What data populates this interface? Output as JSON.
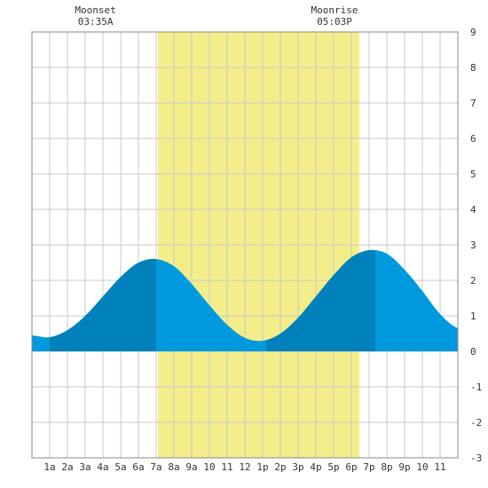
{
  "chart_data": {
    "type": "area",
    "ylim": [
      -3,
      9
    ],
    "xlim": [
      0,
      24
    ],
    "y_ticks": [
      -3,
      -2,
      -1,
      0,
      1,
      2,
      3,
      4,
      5,
      6,
      7,
      8,
      9
    ],
    "x_tick_labels": [
      "1a",
      "2a",
      "3a",
      "4a",
      "5a",
      "6a",
      "7a",
      "8a",
      "9a",
      "10",
      "11",
      "12",
      "1p",
      "2p",
      "3p",
      "4p",
      "5p",
      "6p",
      "7p",
      "8p",
      "9p",
      "10",
      "11"
    ],
    "y_axis_side": "right",
    "grid": true,
    "series": [
      {
        "values_note": "tide height",
        "x": [
          0,
          1,
          2,
          3,
          4,
          5,
          6,
          7,
          8,
          9,
          10,
          11,
          12,
          13,
          14,
          15,
          16,
          17,
          18,
          19,
          20,
          21,
          22,
          23,
          24
        ],
        "y": [
          0.45,
          0.4,
          0.6,
          1.0,
          1.55,
          2.1,
          2.5,
          2.6,
          2.4,
          1.9,
          1.3,
          0.75,
          0.38,
          0.3,
          0.5,
          0.95,
          1.55,
          2.15,
          2.65,
          2.85,
          2.75,
          2.3,
          1.7,
          1.05,
          0.65
        ]
      }
    ],
    "daylight": {
      "start": 7.1,
      "end": 18.45
    },
    "tide_extremes_hours": [
      1.0,
      7.0,
      13.2,
      19.35
    ],
    "moon_events": [
      {
        "label": "Moonset",
        "time": "03:35A",
        "hour": 3.58
      },
      {
        "label": "Moonrise",
        "time": "05:03P",
        "hour": 17.05
      }
    ],
    "colors": {
      "daylight": "#f3ee8a",
      "tide_light": "#0099dd",
      "tide_dark": "#0081bb",
      "grid": "#c8c8c8",
      "frame": "#888888"
    }
  }
}
